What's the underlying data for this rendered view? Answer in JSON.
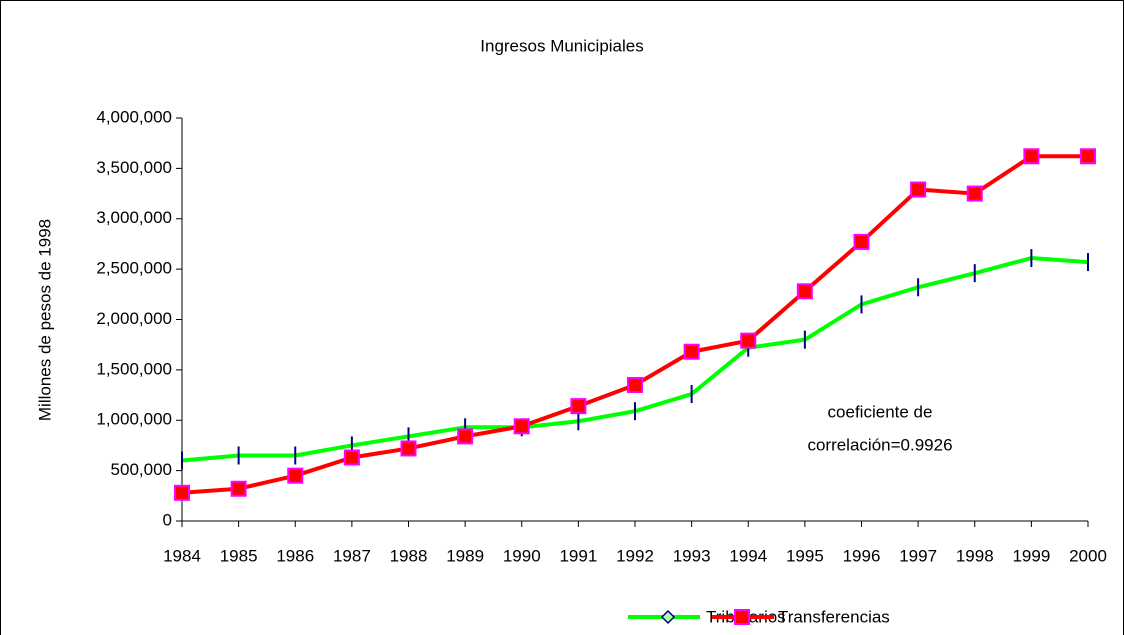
{
  "chart_data": {
    "type": "line",
    "title": "Ingresos Municipiales",
    "y_label": "Millones de pesos de 1998",
    "categories": [
      "1984",
      "1985",
      "1986",
      "1987",
      "1988",
      "1989",
      "1990",
      "1991",
      "1992",
      "1993",
      "1994",
      "1995",
      "1996",
      "1997",
      "1998",
      "1999",
      "2000"
    ],
    "series": [
      {
        "name": "Tributarios",
        "color": "#00ff00",
        "marker": "diamond",
        "values": [
          600000,
          650000,
          650000,
          750000,
          840000,
          930000,
          930000,
          990000,
          1090000,
          1260000,
          1720000,
          1800000,
          2150000,
          2320000,
          2460000,
          2610000,
          2570000
        ]
      },
      {
        "name": "Transferencias",
        "color": "#ff0000",
        "marker": "square",
        "values": [
          280000,
          320000,
          450000,
          630000,
          720000,
          840000,
          940000,
          1140000,
          1350000,
          1680000,
          1790000,
          2280000,
          2770000,
          3290000,
          3250000,
          3620000,
          3620000
        ]
      }
    ],
    "ylim": [
      0,
      4000000
    ],
    "yticks": [
      0,
      {
        "value": 500000,
        "label": "500,000"
      },
      {
        "value": 1000000,
        "label": "1,000,000"
      },
      {
        "value": 1500000,
        "label": "1,500,000"
      },
      {
        "value": 2000000,
        "label": "2,000,000"
      },
      {
        "value": 2500000,
        "label": "2,500,000"
      },
      {
        "value": 3000000,
        "label": "3,000,000"
      },
      {
        "value": 3500000,
        "label": "3,500,000"
      },
      {
        "value": 4000000,
        "label": "4,000,000"
      }
    ],
    "grid": false,
    "legend": "bottom",
    "annotation": [
      "coeficiente de",
      "correlación=0.9926"
    ]
  }
}
